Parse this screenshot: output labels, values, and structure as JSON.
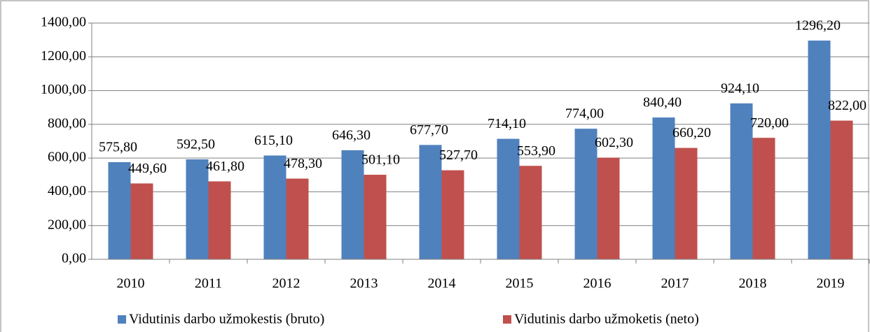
{
  "chart_data": {
    "type": "bar",
    "categories": [
      "2010",
      "2011",
      "2012",
      "2013",
      "2014",
      "2015",
      "2016",
      "2017",
      "2018",
      "2019"
    ],
    "series": [
      {
        "name": "Vidutinis darbo užmokestis (bruto)",
        "color": "#4f81bd",
        "values": [
          575.8,
          592.5,
          615.1,
          646.3,
          677.7,
          714.1,
          774.0,
          840.4,
          924.1,
          1296.2
        ],
        "value_labels": [
          "575,80",
          "592,50",
          "615,10",
          "646,30",
          "677,70",
          "714,10",
          "774,00",
          "840,40",
          "924,10",
          "1296,20"
        ]
      },
      {
        "name": "Vidutinis darbo užmoketis (neto)",
        "color": "#c0504d",
        "values": [
          449.6,
          461.8,
          478.3,
          501.1,
          527.7,
          553.9,
          602.3,
          660.2,
          720.0,
          822.0
        ],
        "value_labels": [
          "449,60",
          "461,80",
          "478,30",
          "501,10",
          "527,70",
          "553,90",
          "602,30",
          "660,20",
          "720,00",
          "822,00"
        ]
      }
    ],
    "ylim": [
      0,
      1400
    ],
    "yticks": [
      {
        "value": 0,
        "label": "0,00"
      },
      {
        "value": 200,
        "label": "200,00"
      },
      {
        "value": 400,
        "label": "400,00"
      },
      {
        "value": 600,
        "label": "600,00"
      },
      {
        "value": 800,
        "label": "800,00"
      },
      {
        "value": 1000,
        "label": "1000,00"
      },
      {
        "value": 1200,
        "label": "1200,00"
      },
      {
        "value": 1400,
        "label": "1400,00"
      }
    ],
    "grid": true,
    "legend": "bottom"
  }
}
